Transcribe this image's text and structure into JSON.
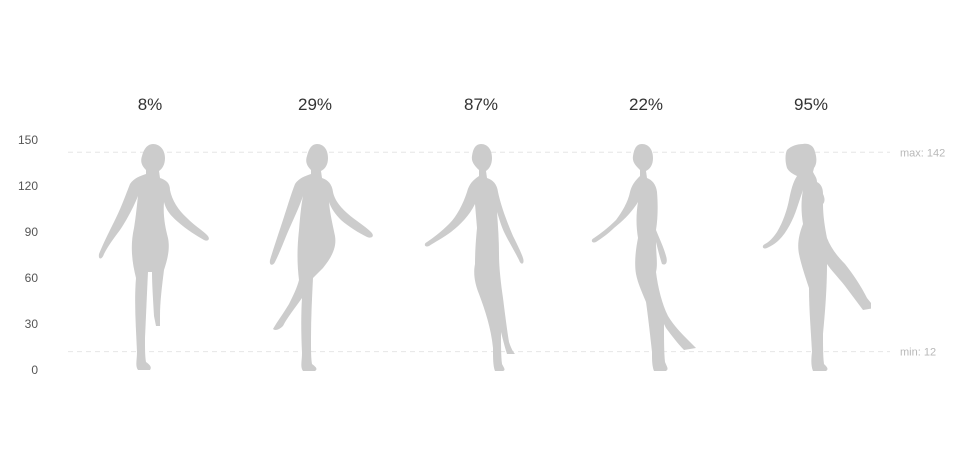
{
  "chart_data": {
    "type": "pictorial-bar",
    "categories": [
      "",
      "",
      "",
      "",
      ""
    ],
    "values": [
      8,
      29,
      87,
      22,
      95
    ],
    "labels": [
      "8%",
      "29%",
      "87%",
      "22%",
      "95%"
    ],
    "ylim": [
      0,
      150
    ],
    "yticks": [
      0,
      30,
      60,
      90,
      120,
      150
    ],
    "reference_lines": [
      {
        "label": "max: 142",
        "value": 142
      },
      {
        "label": "min: 12",
        "value": 12
      }
    ],
    "fill_color": "#91cc75",
    "empty_color": "#cccccc",
    "grid": false
  }
}
